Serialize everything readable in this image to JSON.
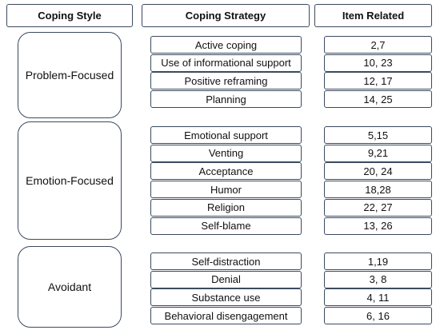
{
  "headers": [
    "Coping Style",
    "Coping Strategy",
    "Item Related"
  ],
  "groups": [
    {
      "style": "Problem-Focused",
      "strategies": [
        {
          "name": "Active coping",
          "items": "2,7"
        },
        {
          "name": "Use of informational support",
          "items": "10, 23"
        },
        {
          "name": "Positive reframing",
          "items": "12, 17"
        },
        {
          "name": "Planning",
          "items": "14, 25"
        }
      ]
    },
    {
      "style": "Emotion-Focused",
      "strategies": [
        {
          "name": "Emotional support",
          "items": "5,15"
        },
        {
          "name": "Venting",
          "items": "9,21"
        },
        {
          "name": "Acceptance",
          "items": "20, 24"
        },
        {
          "name": "Humor",
          "items": "18,28"
        },
        {
          "name": "Religion",
          "items": "22, 27"
        },
        {
          "name": "Self-blame",
          "items": "13, 26"
        }
      ]
    },
    {
      "style": "Avoidant",
      "strategies": [
        {
          "name": "Self-distraction",
          "items": "1,19"
        },
        {
          "name": "Denial",
          "items": "3, 8"
        },
        {
          "name": "Substance use",
          "items": "4, 11"
        },
        {
          "name": "Behavioral disengagement",
          "items": "6, 16"
        }
      ]
    }
  ]
}
